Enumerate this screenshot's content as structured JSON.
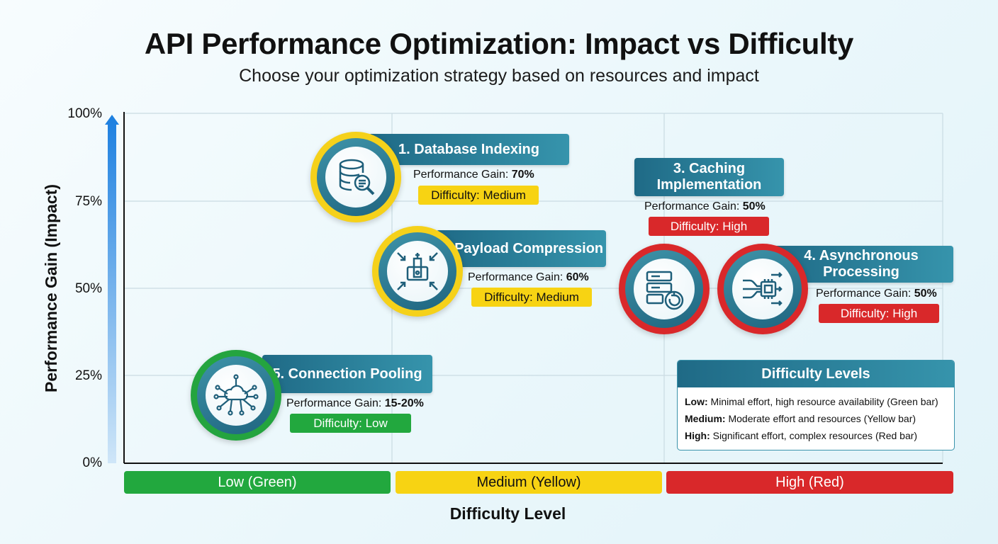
{
  "header": {
    "title": "API Performance Optimization: Impact vs Difficulty",
    "subtitle": "Choose your optimization strategy based on resources and impact"
  },
  "chart_data": {
    "type": "scatter",
    "title": "API Performance Optimization: Impact vs Difficulty",
    "subtitle": "Choose your optimization strategy based on resources and impact",
    "xlabel": "Difficulty Level",
    "ylabel": "Performance Gain (Impact)",
    "x_categories": [
      "Low (Green)",
      "Medium (Yellow)",
      "High (Red)"
    ],
    "y_ticks": [
      "0%",
      "25%",
      "50%",
      "75%",
      "100%"
    ],
    "ylim": [
      0,
      100
    ],
    "grid": true,
    "points": [
      {
        "id": "p1",
        "label": "1. Database Indexing",
        "gain_label": "Performance Gain:",
        "gain_value": "70%",
        "difficulty_label": "Difficulty: Medium",
        "difficulty": "Medium",
        "y": 70,
        "icon": "database-search-icon",
        "color": "#f5d11a"
      },
      {
        "id": "p2",
        "label": "2. Payload Compression",
        "gain_label": "Performance Gain:",
        "gain_value": "60%",
        "difficulty_label": "Difficulty: Medium",
        "difficulty": "Medium",
        "y": 60,
        "icon": "compress-icon",
        "color": "#f5d11a"
      },
      {
        "id": "p3",
        "label": "3. Caching Implementation",
        "gain_label": "Performance Gain:",
        "gain_value": "50%",
        "difficulty_label": "Difficulty: High",
        "difficulty": "High",
        "y": 50,
        "icon": "server-refresh-icon",
        "color": "#d9282a"
      },
      {
        "id": "p4",
        "label": "4. Asynchronous Processing",
        "gain_label": "Performance Gain:",
        "gain_value": "50%",
        "difficulty_label": "Difficulty: High",
        "difficulty": "High",
        "y": 50,
        "icon": "processor-icon",
        "color": "#d9282a"
      },
      {
        "id": "p5",
        "label": "5. Connection Pooling",
        "gain_label": "Performance Gain:",
        "gain_value": "15-20%",
        "difficulty_label": "Difficulty: Low",
        "difficulty": "Low",
        "y": 17.5,
        "icon": "network-hub-icon",
        "color": "#24a43f"
      }
    ],
    "legend": {
      "title": "Difficulty Levels",
      "placement": "bottom-right",
      "items": [
        {
          "key": "Low:",
          "text": "Minimal effort, high resource availability (Green bar)"
        },
        {
          "key": "Medium:",
          "text": "Moderate effort and resources (Yellow bar)"
        },
        {
          "key": "High:",
          "text": "Significant effort, complex resources (Red bar)"
        }
      ]
    },
    "colors": {
      "low": "#22a83e",
      "medium": "#f7d313",
      "high": "#d9282a",
      "accent": "#1f6a86"
    }
  }
}
